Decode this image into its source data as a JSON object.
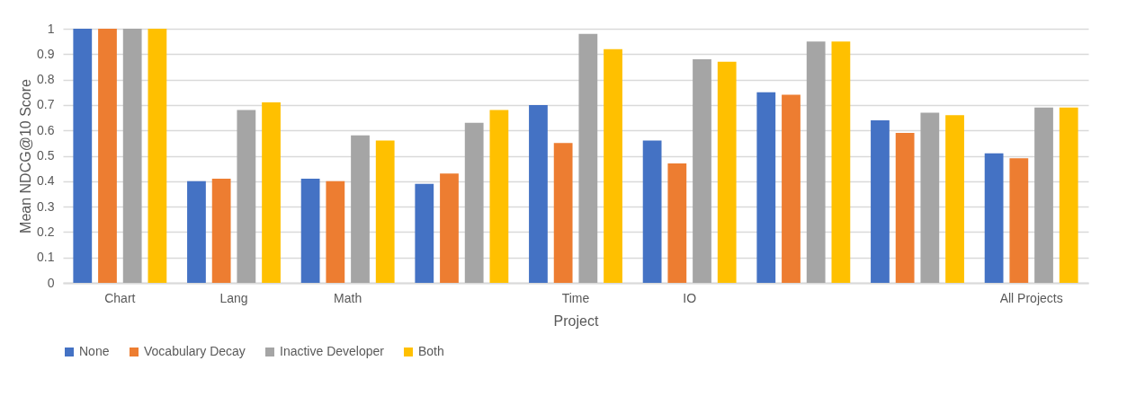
{
  "chart_data": {
    "type": "bar",
    "xlabel": "Project",
    "ylabel": "Mean NDCG@10 Score",
    "categories": [
      "Chart",
      "Lang",
      "Math",
      null,
      "Time",
      "IO",
      null,
      null,
      "All Projects"
    ],
    "series": [
      {
        "name": "None",
        "color": "#4472c4",
        "values": [
          1,
          0.4,
          0.41,
          0.39,
          0.7,
          0.56,
          0.75,
          0.64,
          0.51
        ]
      },
      {
        "name": "Vocabulary Decay",
        "color": "#ed7d31",
        "values": [
          1,
          0.41,
          0.4,
          0.43,
          0.55,
          0.47,
          0.74,
          0.59,
          0.49
        ]
      },
      {
        "name": "Inactive Developer",
        "color": "#a5a5a5",
        "values": [
          1,
          0.68,
          0.58,
          0.63,
          0.98,
          0.88,
          0.95,
          0.67,
          0.69
        ]
      },
      {
        "name": "Both",
        "color": "#ffc000",
        "values": [
          1,
          0.71,
          0.56,
          0.68,
          0.92,
          0.87,
          0.95,
          0.66,
          0.69
        ]
      }
    ],
    "ylim": [
      0,
      1
    ],
    "yticks": [
      0,
      0.1,
      0.2,
      0.3,
      0.4,
      0.5,
      0.6,
      0.7,
      0.8,
      0.9,
      1
    ],
    "grid": "y",
    "legend": "bottom"
  }
}
